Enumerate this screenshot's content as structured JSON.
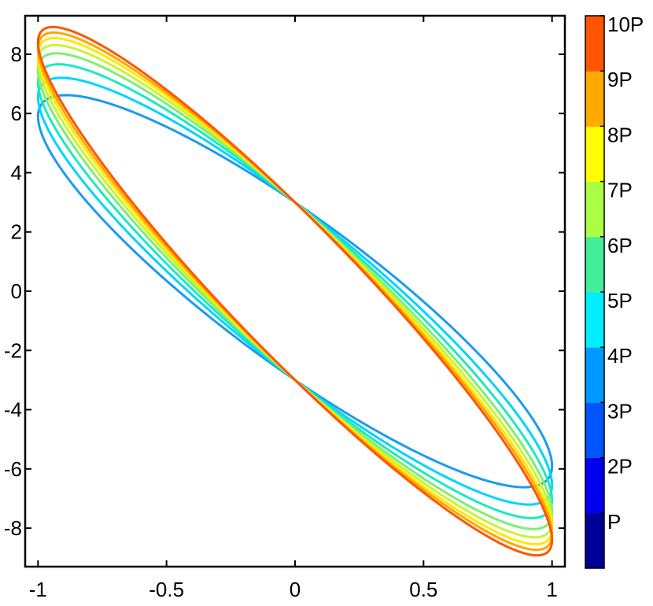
{
  "chart_data": {
    "type": "line",
    "title": "",
    "xlabel": "",
    "ylabel": "",
    "xlim": [
      -1.05,
      1.05
    ],
    "ylim": [
      -9.3,
      9.3
    ],
    "x_ticks": [
      -1,
      -0.5,
      0,
      0.5,
      1
    ],
    "x_tick_labels": [
      "-1",
      "-0.5",
      "0",
      "0.5",
      "1"
    ],
    "y_ticks": [
      8,
      6,
      4,
      2,
      0,
      -2,
      -4,
      -6,
      -8
    ],
    "y_tick_labels": [
      "8",
      "6",
      "4",
      "2",
      "0",
      "-2",
      "-4",
      "-6",
      "-8"
    ],
    "grid": false,
    "series_description": "Closed hysteresis-like loops x = sin(t), y = -(A*sin(t) + B*cos(t)); crossing points at (0, +/-3); loop amplitude grows with color level",
    "series": [
      {
        "color": "#1a9bef",
        "y_at_x_minus1": 5.9,
        "y_at_x_plus1": -5.9,
        "y_at_x0": 3.0
      },
      {
        "color": "#00d4ff",
        "y_at_x_minus1": 6.55,
        "y_at_x_plus1": -6.55,
        "y_at_x0": 3.0
      },
      {
        "color": "#1ee8c0",
        "y_at_x_minus1": 7.05,
        "y_at_x_plus1": -7.05,
        "y_at_x0": 3.0
      },
      {
        "color": "#7cf070",
        "y_at_x_minus1": 7.45,
        "y_at_x_plus1": -7.45,
        "y_at_x0": 3.0
      },
      {
        "color": "#c8f530",
        "y_at_x_minus1": 7.75,
        "y_at_x_plus1": -7.75,
        "y_at_x0": 3.0
      },
      {
        "color": "#ffe800",
        "y_at_x_minus1": 8.0,
        "y_at_x_plus1": -8.0,
        "y_at_x0": 3.0
      },
      {
        "color": "#ffa500",
        "y_at_x_minus1": 8.2,
        "y_at_x_plus1": -8.2,
        "y_at_x0": 3.0
      },
      {
        "color": "#ff5500",
        "y_at_x_minus1": 8.4,
        "y_at_x_plus1": -8.4,
        "y_at_x0": 3.0
      }
    ],
    "colorbar": {
      "labels": [
        "P",
        "2P",
        "3P",
        "4P",
        "5P",
        "6P",
        "7P",
        "8P",
        "9P",
        "10P"
      ],
      "colors": [
        "#000099",
        "#0000ee",
        "#0055ff",
        "#0099ff",
        "#00eeff",
        "#44ee99",
        "#aaff44",
        "#ffff00",
        "#ffaa00",
        "#ff5500"
      ]
    }
  }
}
